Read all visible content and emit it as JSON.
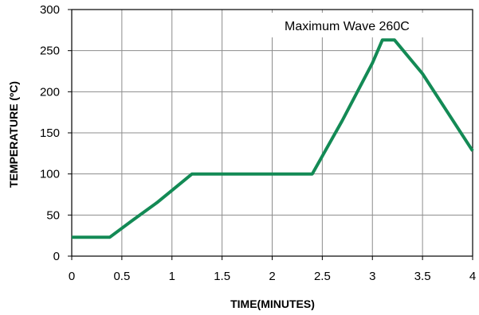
{
  "chart_data": {
    "type": "line",
    "title": "",
    "xlabel": "TIME(MINUTES)",
    "ylabel": "TEMPERATURE (ºC)",
    "xlim": [
      0,
      4
    ],
    "ylim": [
      0,
      300
    ],
    "x_ticks": [
      "0",
      "0.5",
      "1",
      "1.5",
      "2",
      "2.5",
      "3",
      "3.5",
      "4"
    ],
    "y_ticks": [
      "0",
      "50",
      "100",
      "150",
      "200",
      "250",
      "300"
    ],
    "grid": true,
    "series": [
      {
        "name": "Maximum Wave 260C",
        "color": "#138a55",
        "x": [
          0,
          0.38,
          0.6,
          0.85,
          1.0,
          1.2,
          2.0,
          2.4,
          2.7,
          3.0,
          3.1,
          3.22,
          3.5,
          3.75,
          4.0
        ],
        "y": [
          23,
          23,
          43,
          65,
          80,
          100,
          100,
          100,
          165,
          235,
          263,
          263,
          222,
          175,
          128
        ]
      }
    ],
    "legend": {
      "label": "Maximum Wave 260C",
      "position": "top-right"
    }
  }
}
